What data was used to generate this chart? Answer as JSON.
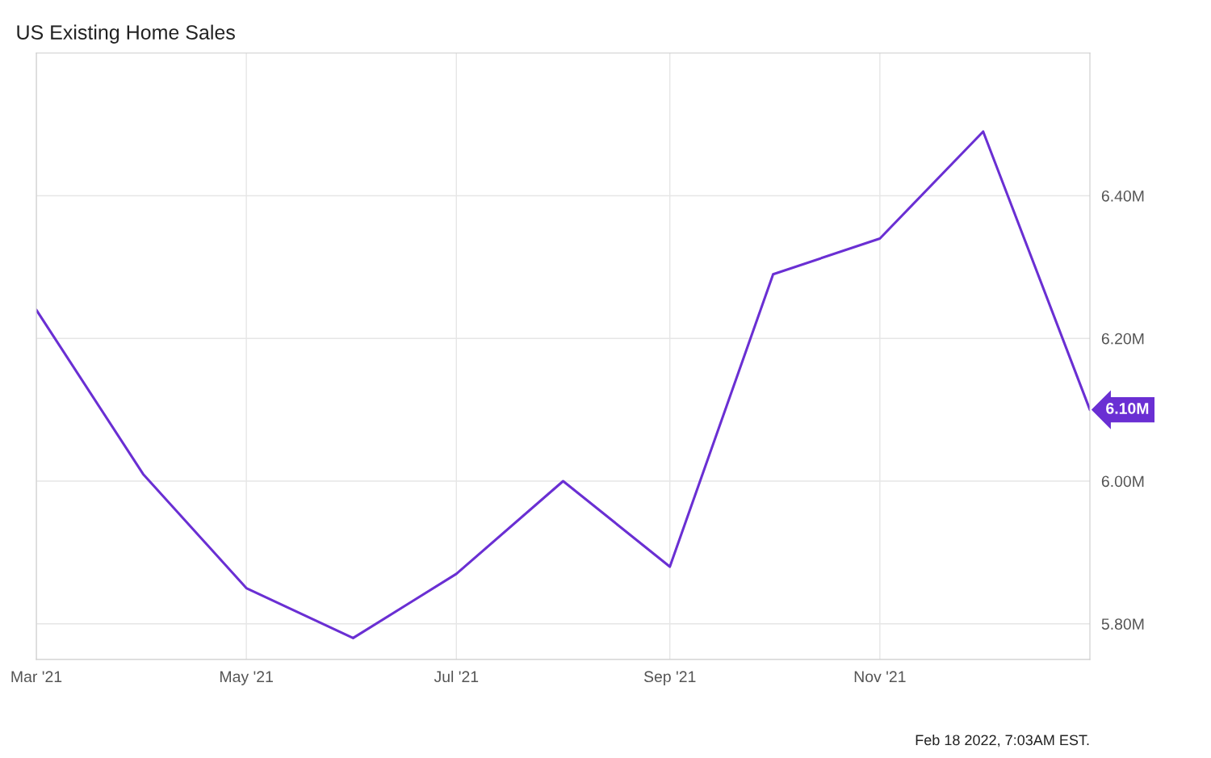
{
  "chart_data": {
    "type": "line",
    "title": "US Existing Home Sales",
    "x": [
      "2021-03-01",
      "2021-04-01",
      "2021-05-01",
      "2021-06-01",
      "2021-07-01",
      "2021-08-01",
      "2021-09-01",
      "2021-10-01",
      "2021-11-01",
      "2021-12-01",
      "2022-01-01"
    ],
    "series": [
      {
        "color": "#6a2fd3",
        "values": [
          6.24,
          6.01,
          5.85,
          5.78,
          5.87,
          6.0,
          5.88,
          6.29,
          6.34,
          6.49,
          6.1
        ],
        "value_labels": [
          null,
          null,
          null,
          null,
          null,
          null,
          null,
          null,
          null,
          null,
          "6.10M"
        ]
      }
    ],
    "xlim": [
      "2021-03-01",
      "2022-01-01"
    ],
    "xticks": [
      {
        "value": "2021-03-01",
        "label": "Mar '21"
      },
      {
        "value": "2021-05-01",
        "label": "May '21"
      },
      {
        "value": "2021-07-01",
        "label": "Jul '21"
      },
      {
        "value": "2021-09-01",
        "label": "Sep '21"
      },
      {
        "value": "2021-11-01",
        "label": "Nov '21"
      }
    ],
    "ylim": [
      5.75,
      6.6
    ],
    "yticks": [
      {
        "value": 5.8,
        "label": "5.80M"
      },
      {
        "value": 6.0,
        "label": "6.00M"
      },
      {
        "value": 6.2,
        "label": "6.20M"
      },
      {
        "value": 6.4,
        "label": "6.40M"
      }
    ],
    "grid": true,
    "marker": "none",
    "line_style": "solid",
    "annotations": [
      "Feb 18 2022, 7:03AM EST."
    ]
  }
}
